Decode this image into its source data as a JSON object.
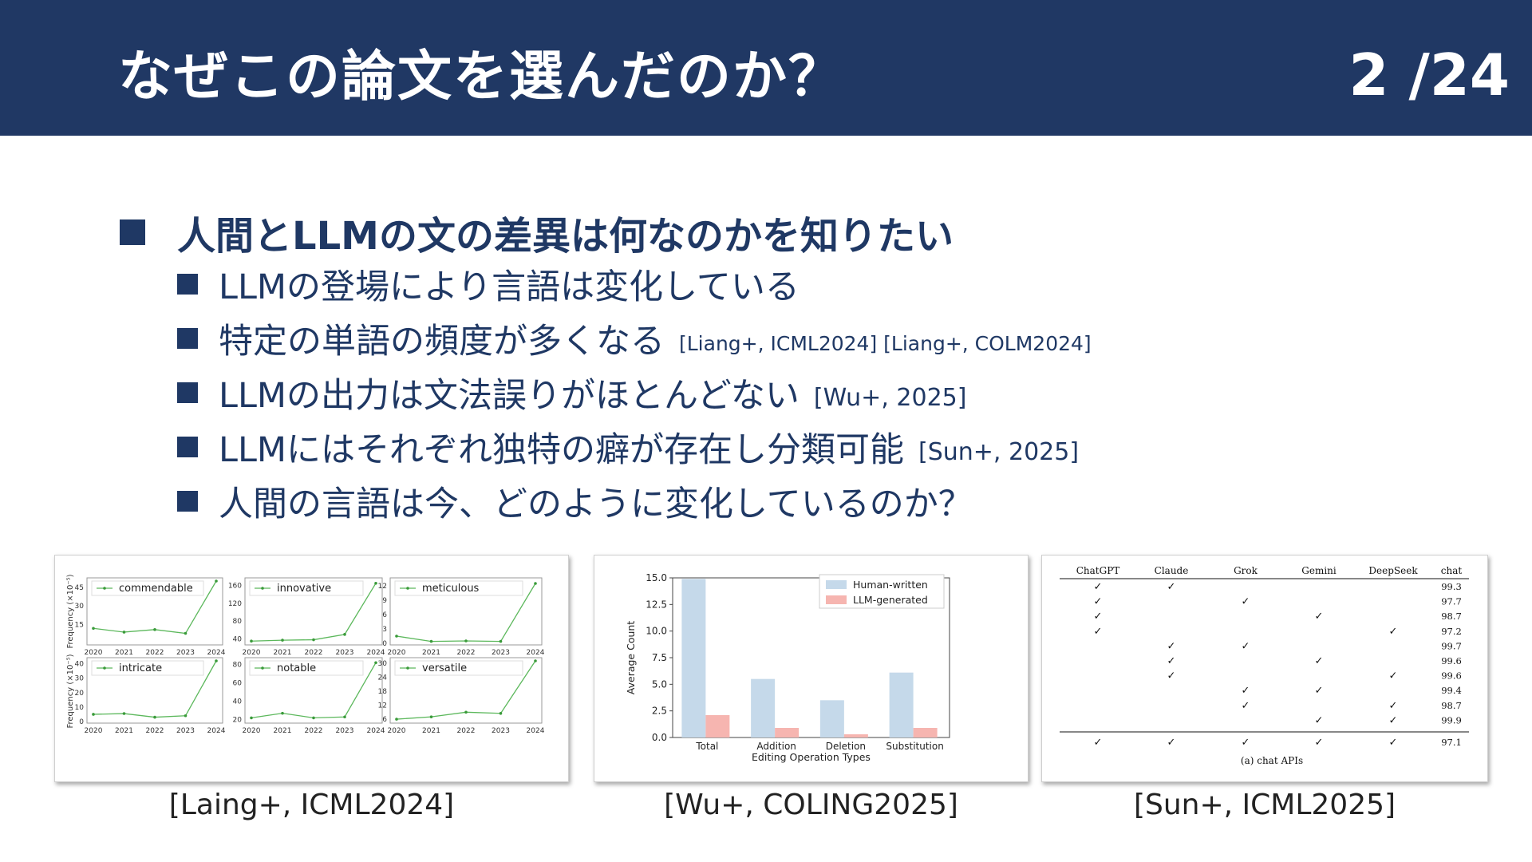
{
  "slide": {
    "title": "なぜこの論文を選んだのか？",
    "page": "2 /24"
  },
  "bullets": {
    "main": "人間とLLMの文の差異は何なのかを知りたい",
    "subs": [
      {
        "text": "LLMの登場により言語は変化している",
        "cite": ""
      },
      {
        "text": "特定の単語の頻度が多くなる",
        "cite": "[Liang+, ICML2024] [Liang+, COLM2024]"
      },
      {
        "text": "LLMの出力は文法誤りがほとんどない",
        "cite": "[Wu+, 2025]"
      },
      {
        "text": "LLMにはそれぞれ独特の癖が存在し分類可能",
        "cite": "[Sun+, 2025]"
      },
      {
        "text": "人間の言語は今、どのように変化しているのか？",
        "cite": ""
      }
    ]
  },
  "captions": {
    "fig1": "[Laing+, ICML2024]",
    "fig2": "[Wu+, COLING2025]",
    "fig3": "[Sun+, ICML2025]"
  },
  "chart_data": [
    {
      "type": "line",
      "x": [
        "2020",
        "2021",
        "2022",
        "2023",
        "2024"
      ],
      "ylabel": "Frequency (×10⁻⁵)",
      "panels": [
        {
          "name": "commendable",
          "values": [
            12,
            9,
            11,
            8,
            50
          ],
          "ylim": [
            0,
            50
          ],
          "yticks": [
            15,
            30,
            45
          ]
        },
        {
          "name": "innovative",
          "values": [
            35,
            37,
            38,
            50,
            165
          ],
          "ylim": [
            30,
            170
          ],
          "yticks": [
            40,
            80,
            120,
            160
          ]
        },
        {
          "name": "meticulous",
          "values": [
            1.5,
            0.4,
            0.5,
            0.4,
            12.5
          ],
          "ylim": [
            0,
            13
          ],
          "yticks": [
            0,
            3,
            6,
            9,
            12
          ]
        },
        {
          "name": "intricate",
          "values": [
            5,
            5.5,
            3,
            4,
            42
          ],
          "ylim": [
            0,
            42
          ],
          "yticks": [
            0,
            10,
            20,
            30,
            40
          ]
        },
        {
          "name": "notable",
          "values": [
            22,
            27,
            22,
            23,
            82
          ],
          "ylim": [
            18,
            84
          ],
          "yticks": [
            20,
            40,
            60,
            80
          ]
        },
        {
          "name": "versatile",
          "values": [
            6,
            7,
            9,
            8.5,
            31
          ],
          "ylim": [
            5,
            31
          ],
          "yticks": [
            6,
            12,
            18,
            24,
            30
          ]
        }
      ]
    },
    {
      "type": "bar",
      "categories": [
        "Total",
        "Addition",
        "Deletion",
        "Substitution"
      ],
      "series": [
        {
          "name": "Human-written",
          "values": [
            14.9,
            5.5,
            3.5,
            6.1
          ]
        },
        {
          "name": "LLM-generated",
          "values": [
            2.1,
            0.9,
            0.3,
            0.9
          ]
        }
      ],
      "xlabel": "Editing Operation Types",
      "ylabel": "Average Count",
      "ylim": [
        0,
        15
      ],
      "yticks": [
        "0.0",
        "2.5",
        "5.0",
        "7.5",
        "10.0",
        "12.5",
        "15.0"
      ],
      "legend": "top-right",
      "colors": {
        "Human-written": "#c5d9ea",
        "LLM-generated": "#f6b5b0"
      }
    },
    {
      "type": "table",
      "columns": [
        "ChatGPT",
        "Claude",
        "Grok",
        "Gemini",
        "DeepSeek",
        "chat"
      ],
      "rows": [
        [
          true,
          true,
          false,
          false,
          false,
          "99.3"
        ],
        [
          true,
          false,
          true,
          false,
          false,
          "97.7"
        ],
        [
          true,
          false,
          false,
          true,
          false,
          "98.7"
        ],
        [
          true,
          false,
          false,
          false,
          true,
          "97.2"
        ],
        [
          false,
          true,
          true,
          false,
          false,
          "99.7"
        ],
        [
          false,
          true,
          false,
          true,
          false,
          "99.6"
        ],
        [
          false,
          true,
          false,
          false,
          true,
          "99.6"
        ],
        [
          false,
          false,
          true,
          true,
          false,
          "99.4"
        ],
        [
          false,
          false,
          true,
          false,
          true,
          "98.7"
        ],
        [
          false,
          false,
          false,
          true,
          true,
          "99.9"
        ]
      ],
      "total_row": [
        true,
        true,
        true,
        true,
        true,
        "97.1"
      ],
      "caption": "(a) chat APIs",
      "checkmark": "✓"
    }
  ]
}
